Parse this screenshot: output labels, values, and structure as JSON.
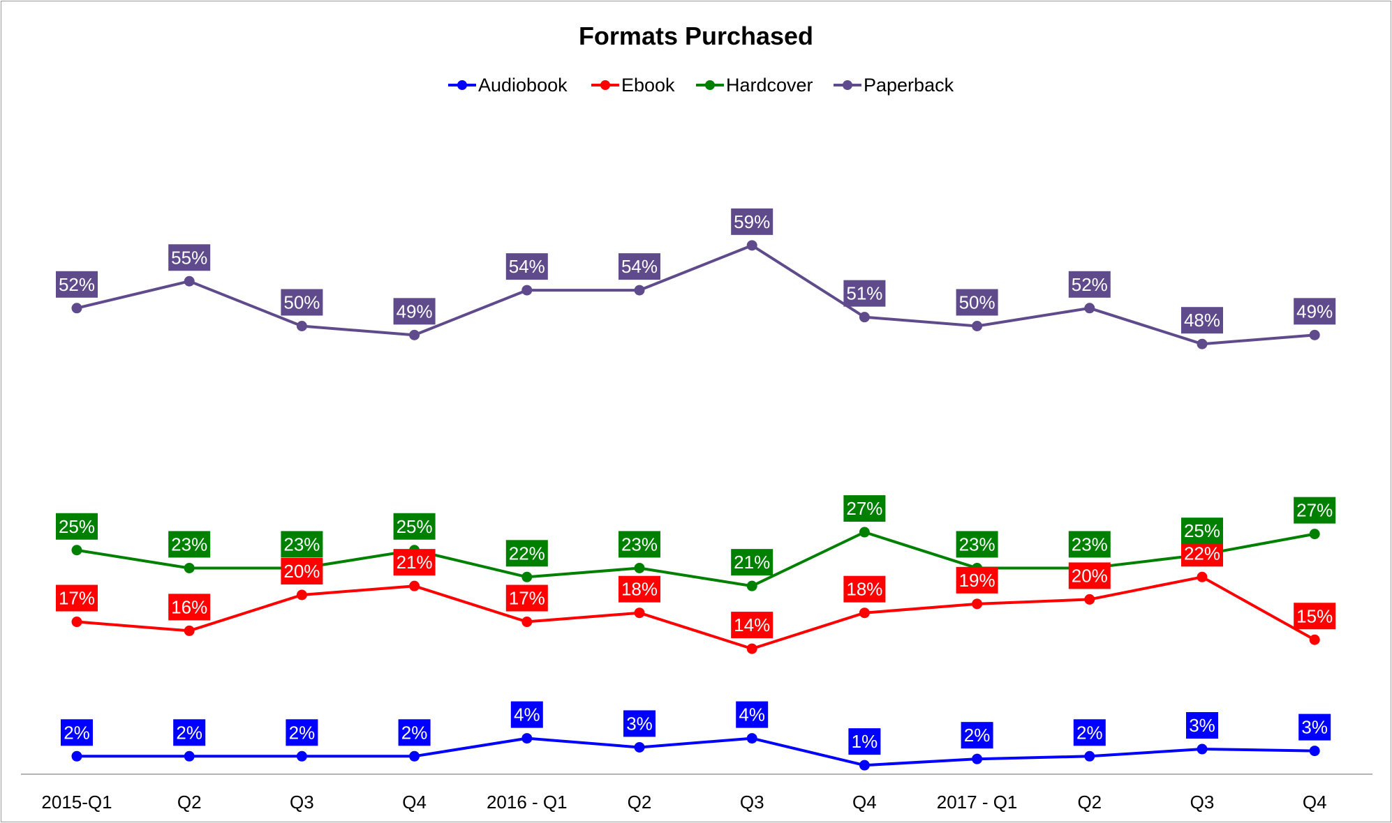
{
  "chart_data": {
    "type": "line",
    "title": "Formats Purchased",
    "xlabel": "",
    "ylabel": "",
    "categories": [
      "2015-Q1",
      "Q2",
      "Q3",
      "Q4",
      "2016 - Q1",
      "Q2",
      "Q3",
      "Q4",
      "2017 - Q1",
      "Q2",
      "Q3",
      "Q4"
    ],
    "ylim": [
      0,
      0.64
    ],
    "grid": false,
    "legend_position": "top",
    "series": [
      {
        "name": "Audiobook",
        "color": "#0000ff",
        "values": [
          0.02,
          0.02,
          0.02,
          0.02,
          0.04,
          0.03,
          0.04,
          0.01,
          0.017,
          0.02,
          0.028,
          0.026
        ],
        "labels": [
          "2%",
          "2%",
          "2%",
          "2%",
          "4%",
          "3%",
          "4%",
          "1%",
          "2%",
          "2%",
          "3%",
          "3%"
        ]
      },
      {
        "name": "Ebook",
        "color": "#ff0000",
        "values": [
          0.17,
          0.16,
          0.2,
          0.21,
          0.17,
          0.18,
          0.14,
          0.18,
          0.19,
          0.195,
          0.22,
          0.15
        ],
        "labels": [
          "17%",
          "16%",
          "20%",
          "21%",
          "17%",
          "18%",
          "14%",
          "18%",
          "19%",
          "20%",
          "22%",
          "15%"
        ]
      },
      {
        "name": "Hardcover",
        "color": "#008000",
        "values": [
          0.25,
          0.23,
          0.23,
          0.25,
          0.22,
          0.23,
          0.21,
          0.27,
          0.23,
          0.23,
          0.245,
          0.268
        ],
        "labels": [
          "25%",
          "23%",
          "23%",
          "25%",
          "22%",
          "23%",
          "21%",
          "27%",
          "23%",
          "23%",
          "25%",
          "27%"
        ]
      },
      {
        "name": "Paperback",
        "color": "#5f4b8b",
        "values": [
          0.52,
          0.55,
          0.5,
          0.49,
          0.54,
          0.54,
          0.59,
          0.51,
          0.5,
          0.52,
          0.48,
          0.49
        ],
        "labels": [
          "52%",
          "55%",
          "50%",
          "49%",
          "54%",
          "54%",
          "59%",
          "51%",
          "50%",
          "52%",
          "48%",
          "49%"
        ]
      }
    ]
  }
}
